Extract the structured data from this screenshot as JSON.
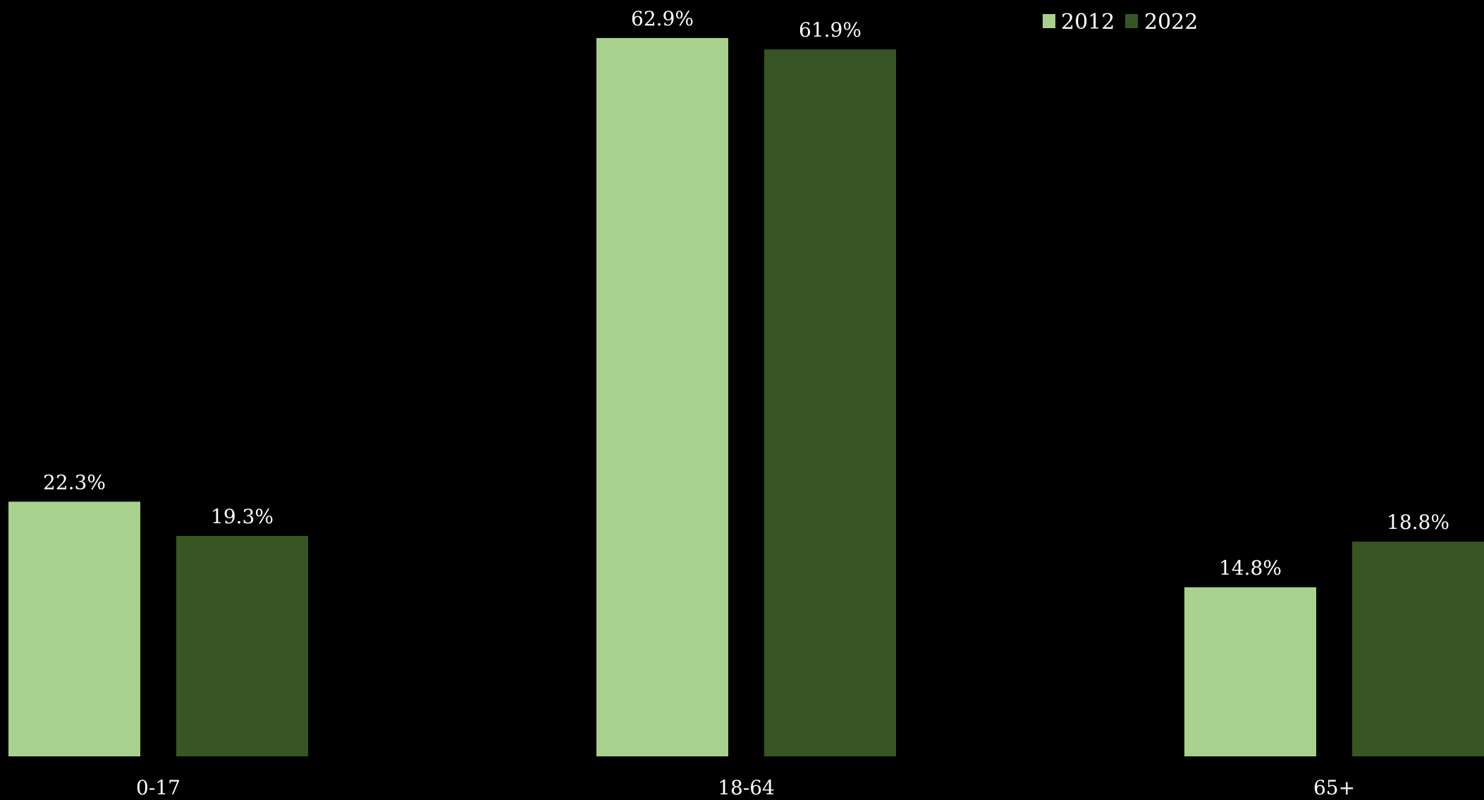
{
  "chart_data": {
    "type": "bar",
    "categories": [
      "0-17",
      "18-64",
      "65+"
    ],
    "series": [
      {
        "name": "2012",
        "values": [
          22.3,
          62.9,
          14.8
        ],
        "labels": [
          "22.3%",
          "62.9%",
          "14.8%"
        ],
        "color": "#a9d18e"
      },
      {
        "name": "2022",
        "values": [
          19.3,
          61.9,
          18.8
        ],
        "labels": [
          "19.3%",
          "61.9%",
          "18.8%"
        ],
        "color": "#375623"
      }
    ],
    "title": "",
    "xlabel": "",
    "ylabel": "",
    "ylim": [
      0,
      62.9
    ],
    "value_format": "percent",
    "grid": false,
    "legend": "top-right",
    "background": "#000000",
    "text_color": "#ffffff"
  }
}
